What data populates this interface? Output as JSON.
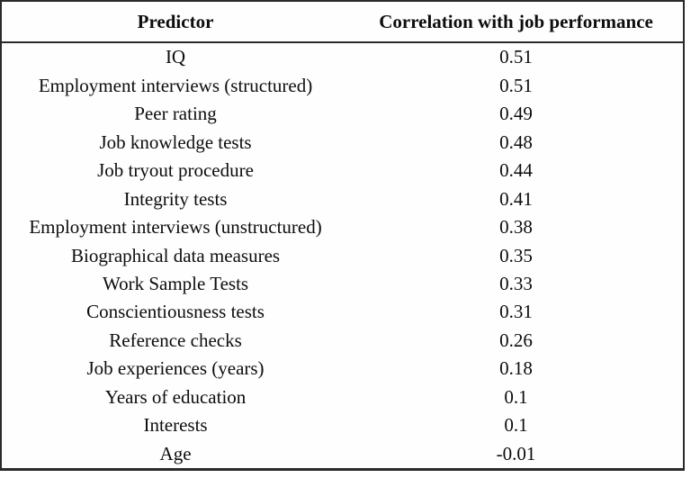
{
  "table": {
    "columns": [
      "Predictor",
      "Correlation with job performance"
    ],
    "rows": [
      {
        "predictor": "IQ",
        "correlation": "0.51"
      },
      {
        "predictor": "Employment interviews (structured)",
        "correlation": "0.51"
      },
      {
        "predictor": "Peer rating",
        "correlation": "0.49"
      },
      {
        "predictor": "Job knowledge tests",
        "correlation": "0.48"
      },
      {
        "predictor": "Job tryout procedure",
        "correlation": "0.44"
      },
      {
        "predictor": "Integrity tests",
        "correlation": "0.41"
      },
      {
        "predictor": "Employment interviews (unstructured)",
        "correlation": "0.38"
      },
      {
        "predictor": "Biographical data measures",
        "correlation": "0.35"
      },
      {
        "predictor": "Work Sample Tests",
        "correlation": "0.33"
      },
      {
        "predictor": "Conscientiousness tests",
        "correlation": "0.31"
      },
      {
        "predictor": "Reference checks",
        "correlation": "0.26"
      },
      {
        "predictor": "Job experiences (years)",
        "correlation": "0.18"
      },
      {
        "predictor": "Years of education",
        "correlation": "0.1"
      },
      {
        "predictor": "Interests",
        "correlation": "0.1"
      },
      {
        "predictor": "Age",
        "correlation": "-0.01"
      }
    ],
    "colors": {
      "border": "#2a2a2a",
      "text": "#0d0d0d",
      "background": "#fefefe"
    }
  }
}
